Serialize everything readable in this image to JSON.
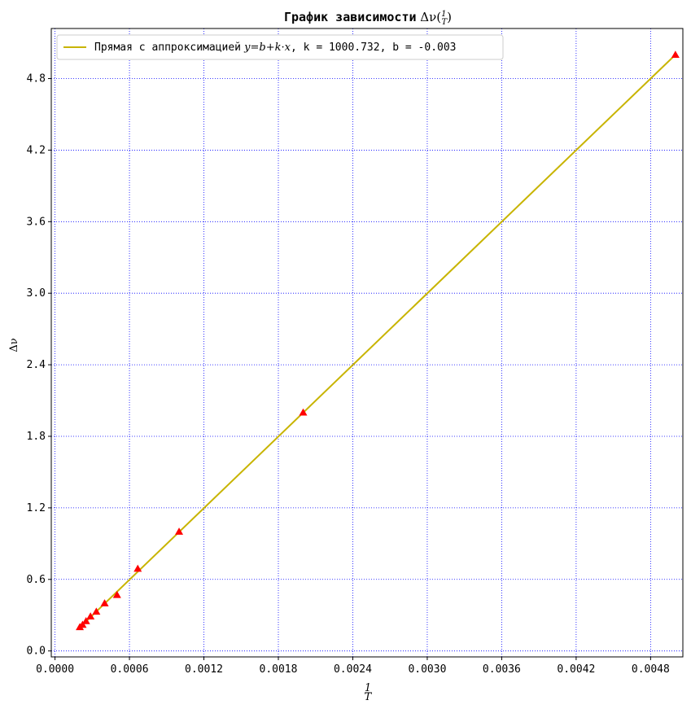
{
  "chart_data": {
    "type": "scatter",
    "title": "График зависимости Δν(1/T)",
    "title_prefix": "График зависимости",
    "xlabel": "1/T",
    "ylabel": "Δν",
    "xlim": [
      -3e-05,
      0.00506
    ],
    "ylim": [
      -0.05,
      5.22
    ],
    "x_ticks": [
      0.0,
      0.0006,
      0.0012,
      0.0018,
      0.0024,
      0.003,
      0.0036,
      0.0042,
      0.0048
    ],
    "x_tick_labels": [
      "0.0000",
      "0.0006",
      "0.0012",
      "0.0018",
      "0.0024",
      "0.0030",
      "0.0036",
      "0.0042",
      "0.0048"
    ],
    "y_ticks": [
      0.0,
      0.6,
      1.2,
      1.8,
      2.4,
      3.0,
      3.6,
      4.2,
      4.8
    ],
    "y_tick_labels": [
      "0.0",
      "0.6",
      "1.2",
      "1.8",
      "2.4",
      "3.0",
      "3.6",
      "4.2",
      "4.8"
    ],
    "grid": true,
    "grid_color": "#0000ff",
    "legend_position": "upper-left",
    "series": [
      {
        "kind": "points",
        "marker": "triangle",
        "color": "#ff0000",
        "x": [
          0.0002,
          0.000222,
          0.00025,
          0.000286,
          0.000333,
          0.0004,
          0.0005,
          0.000667,
          0.001,
          0.002,
          0.005
        ],
        "y": [
          0.2,
          0.22,
          0.25,
          0.29,
          0.33,
          0.4,
          0.47,
          0.69,
          1.0,
          2.0,
          5.0
        ]
      },
      {
        "kind": "line",
        "name": "Прямая с аппроксимацией y = b + k·x, k = 1000.732, b = -0.003",
        "legend_prefix": "Прямая с аппроксимацией",
        "legend_suffix": ", k = 1000.732, b = -0.003",
        "color": "#c8b400",
        "x": [
          0.0002,
          0.005
        ],
        "y": [
          0.197,
          5.0
        ]
      }
    ]
  }
}
